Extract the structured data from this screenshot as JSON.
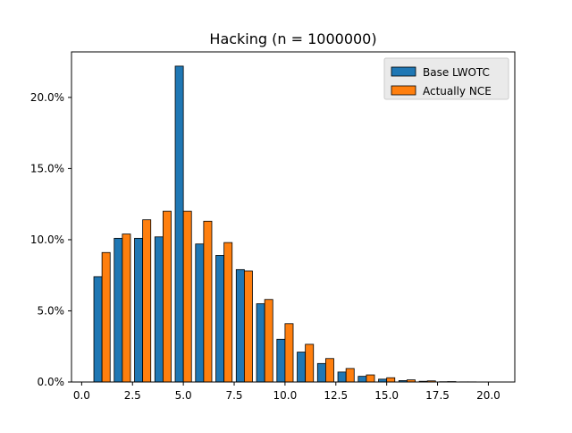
{
  "chart_data": {
    "type": "bar",
    "title": "Hacking (n = 1000000)",
    "xlabel": "",
    "ylabel": "",
    "x": [
      1,
      2,
      3,
      4,
      5,
      6,
      7,
      8,
      9,
      10,
      11,
      12,
      13,
      14,
      15,
      16,
      17,
      18,
      19,
      20
    ],
    "xlim": [
      -0.5,
      21.3
    ],
    "ylim": [
      0,
      23.2
    ],
    "x_ticks": [
      0.0,
      2.5,
      5.0,
      7.5,
      10.0,
      12.5,
      15.0,
      17.5,
      20.0
    ],
    "x_tick_labels": [
      "0.0",
      "2.5",
      "5.0",
      "7.5",
      "10.0",
      "12.5",
      "15.0",
      "17.5",
      "20.0"
    ],
    "y_ticks": [
      0,
      5,
      10,
      15,
      20
    ],
    "y_tick_labels": [
      "0.0%",
      "5.0%",
      "10.0%",
      "15.0%",
      "20.0%"
    ],
    "grid": false,
    "legend_position": "top-right",
    "series": [
      {
        "name": "Base LWOTC",
        "color": "#1f77b4",
        "values": [
          7.4,
          10.1,
          10.1,
          10.2,
          22.2,
          9.7,
          8.9,
          7.9,
          5.5,
          3.0,
          2.1,
          1.3,
          0.7,
          0.4,
          0.2,
          0.1,
          0.05,
          0.02,
          0.01,
          0.0
        ]
      },
      {
        "name": "Actually NCE",
        "color": "#ff7f0e",
        "values": [
          9.1,
          10.4,
          11.4,
          12.0,
          12.0,
          11.3,
          9.8,
          7.8,
          5.8,
          4.1,
          2.65,
          1.65,
          0.95,
          0.5,
          0.3,
          0.15,
          0.08,
          0.03,
          0.01,
          0.0
        ]
      }
    ]
  }
}
